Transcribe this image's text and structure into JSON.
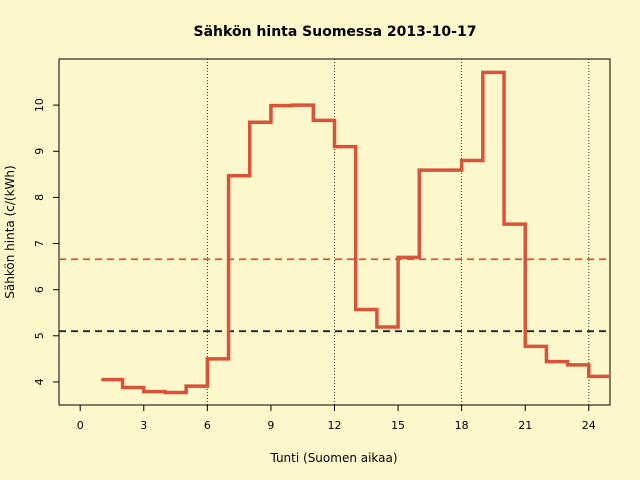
{
  "chart_data": {
    "type": "line",
    "title": "Sähkön hinta Suomessa 2013-10-17",
    "xlabel": "Tunti (Suomen aikaa)",
    "ylabel": "Sähkön hinta (c/(kWh)",
    "xlim": [
      -1,
      25
    ],
    "ylim": [
      3.5,
      11
    ],
    "x_ticks": [
      0,
      3,
      6,
      9,
      12,
      15,
      18,
      21,
      24
    ],
    "y_ticks": [
      4,
      5,
      6,
      7,
      8,
      9,
      10
    ],
    "grid": "vertical dotted lines at x = 6, 12, 18, 24",
    "step": "post",
    "series": [
      {
        "color": "#d9533a",
        "x": [
          1,
          2,
          3,
          4,
          5,
          6,
          7,
          8,
          9,
          10,
          11,
          12,
          13,
          14,
          15,
          16,
          17,
          18,
          19,
          20,
          21,
          22,
          23,
          24,
          25
        ],
        "values": [
          4.05,
          3.88,
          3.79,
          3.77,
          3.91,
          4.5,
          8.47,
          9.63,
          9.99,
          10.0,
          9.67,
          9.1,
          5.57,
          5.19,
          6.7,
          8.59,
          8.59,
          8.8,
          10.71,
          7.42,
          4.77,
          4.44,
          4.37,
          4.12,
          4.12
        ]
      }
    ],
    "reference_lines": [
      {
        "y": 6.66,
        "color": "#d9533a",
        "style": "dashed"
      },
      {
        "y": 5.1,
        "color": "#222222",
        "style": "dashed"
      }
    ]
  }
}
